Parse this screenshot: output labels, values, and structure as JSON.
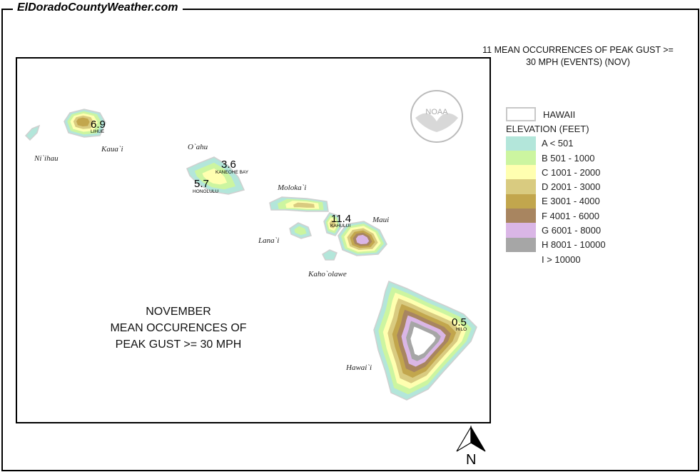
{
  "site_name": "ElDoradoCountyWeather.com",
  "map_title": "11 MEAN OCCURRENCES OF PEAK GUST >= 30 MPH (EVENTS) (NOV)",
  "map_title_lines": [
    "11 MEAN OCCURRENCES OF PEAK GUST >=",
    "30 MPH (EVENTS) (NOV)"
  ],
  "legend": {
    "boundary_label": "HAWAII",
    "elevation_title": "ELEVATION (FEET)",
    "items": [
      {
        "label": "A < 501",
        "color": "#b3e6da"
      },
      {
        "label": "B 501 - 1000",
        "color": "#ccf5a0"
      },
      {
        "label": "C 1001 - 2000",
        "color": "#ffffb0"
      },
      {
        "label": "D 2001 - 3000",
        "color": "#d9cb80"
      },
      {
        "label": "E 3001 - 4000",
        "color": "#c2a64d"
      },
      {
        "label": "F 4001 - 6000",
        "color": "#a88560"
      },
      {
        "label": "G 6001 - 8000",
        "color": "#dab6e6"
      },
      {
        "label": "H 8001 - 10000",
        "color": "#a6a6a6"
      },
      {
        "label": "I > 10000",
        "color": "#ffffff"
      }
    ]
  },
  "caption_lines": [
    "NOVEMBER",
    "MEAN OCCURENCES OF",
    "PEAK GUST >= 30 MPH"
  ],
  "islands": [
    "Ni`ihau",
    "Kaua`i",
    "O`ahu",
    "Moloka`i",
    "Lana`i",
    "Maui",
    "Kaho`olawe",
    "Hawai`i"
  ],
  "stations": [
    {
      "name": "LIHUE",
      "value": "6.9"
    },
    {
      "name": "KANEOHE BAY",
      "value": "3.6"
    },
    {
      "name": "HONOLULU",
      "value": "5.7"
    },
    {
      "name": "KAHULUI",
      "value": "11.4"
    },
    {
      "name": "HILO",
      "value": "0.5"
    }
  ],
  "logo_text": "NOAA",
  "north_label": "N"
}
